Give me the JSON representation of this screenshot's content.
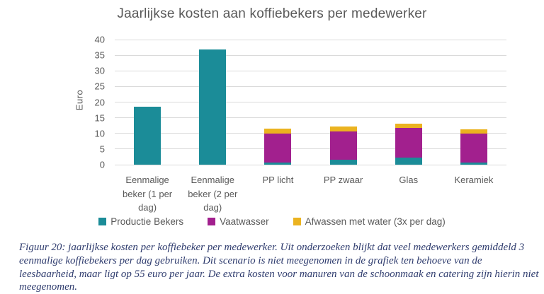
{
  "chart_data": {
    "type": "bar",
    "stacked": true,
    "title": "Jaarlijkse kosten aan koffiebekers per medewerker",
    "xlabel": "",
    "ylabel": "Euro",
    "ylim": [
      0,
      40
    ],
    "ytick_step": 5,
    "grid": true,
    "legend_position": "bottom",
    "categories": [
      "Eenmalige beker (1 per dag)",
      "Eenmalige beker (2 per dag)",
      "PP licht",
      "PP zwaar",
      "Glas",
      "Keramiek"
    ],
    "series": [
      {
        "name": "Productie Bekers",
        "color": "#1b8c98",
        "values": [
          18.5,
          36.8,
          0.7,
          1.5,
          2.3,
          0.6
        ]
      },
      {
        "name": "Vaatwasser",
        "color": "#a2208e",
        "values": [
          0,
          0,
          9.3,
          9.2,
          9.5,
          9.3
        ]
      },
      {
        "name": "Afwassen met water (3x per dag)",
        "color": "#ebb320",
        "values": [
          0,
          0,
          1.5,
          1.5,
          1.4,
          1.4
        ]
      }
    ]
  },
  "colors": {
    "gridline": "#dadada",
    "axis_text": "#595959",
    "title_text": "#595959",
    "caption_text": "#2f3c6e",
    "background": "#ffffff"
  },
  "caption": "Figuur 20: jaarlijkse kosten per koffiebeker per medewerker. Uit onderzoeken blijkt dat veel medewerkers gemiddeld 3 eenmalige koffiebekers per dag gebruiken. Dit scenario is niet meegenomen in de grafiek ten behoeve van de leesbaarheid, maar ligt op 55 euro per jaar. De extra kosten voor manuren van de schoonmaak en catering zijn hierin niet meegenomen."
}
